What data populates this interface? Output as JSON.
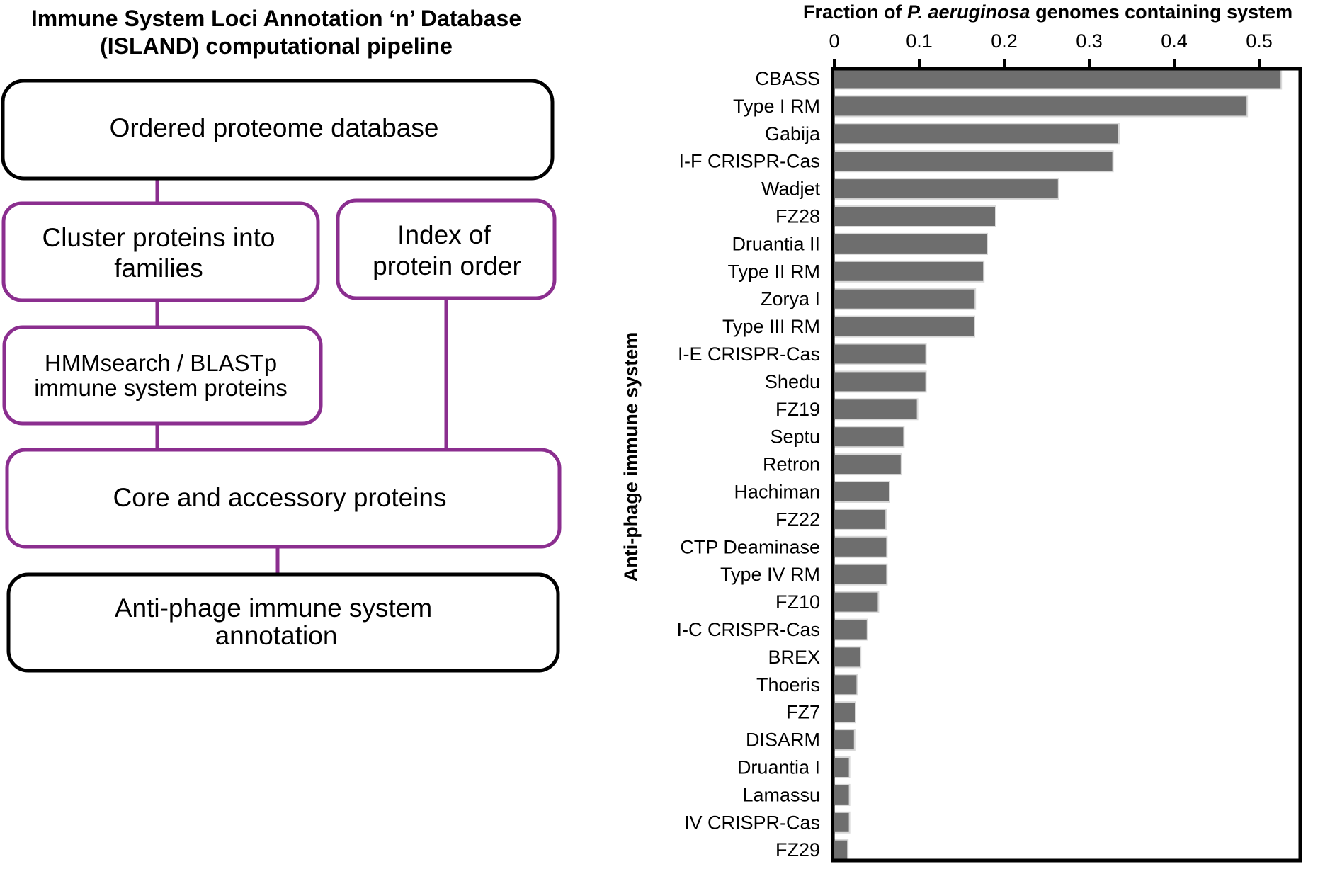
{
  "pipeline": {
    "title_line1": "Immune System Loci Annotation ‘n’ Database",
    "title_line2": "(ISLAND) computational pipeline",
    "box_ordered": "Ordered proteome database",
    "box_cluster_line1": "Cluster proteins into",
    "box_cluster_line2": "families",
    "box_index_line1": "Index of",
    "box_index_line2": "protein order",
    "box_hmm_line1": "HMMsearch / BLASTp",
    "box_hmm_line2": "immune system proteins",
    "box_core": "Core and accessory proteins",
    "box_annot_line1": "Anti-phage immune system",
    "box_annot_line2": "annotation",
    "colors": {
      "black_box": "#000000",
      "purple_box": "#8B2E8F"
    }
  },
  "chart_data": {
    "type": "bar",
    "orientation": "horizontal",
    "title_prefix": "Fraction of ",
    "title_italic": "P. aeruginosa",
    "title_suffix": " genomes containing system",
    "ylabel": "Anti-phage immune system",
    "xlim": [
      0,
      0.54
    ],
    "xticks": [
      0,
      0.1,
      0.2,
      0.3,
      0.4,
      0.5
    ],
    "xtick_labels": [
      "0",
      "0.1",
      "0.2",
      "0.3",
      "0.4",
      "0.5"
    ],
    "categories": [
      "CBASS",
      "Type I RM",
      "Gabija",
      "I-F CRISPR-Cas",
      "Wadjet",
      "FZ28",
      "Druantia II",
      "Type II RM",
      "Zorya I",
      "Type III RM",
      "I-E CRISPR-Cas",
      "Shedu",
      "FZ19",
      "Septu",
      "Retron",
      "Hachiman",
      "FZ22",
      "CTP Deaminase",
      "Type IV RM",
      "FZ10",
      "I-C CRISPR-Cas",
      "BREX",
      "Thoeris",
      "FZ7",
      "DISARM",
      "Druantia I",
      "Lamassu",
      "IV CRISPR-Cas",
      "FZ29"
    ],
    "values": [
      0.526,
      0.486,
      0.335,
      0.328,
      0.264,
      0.19,
      0.18,
      0.176,
      0.166,
      0.165,
      0.108,
      0.108,
      0.098,
      0.082,
      0.079,
      0.065,
      0.061,
      0.062,
      0.062,
      0.052,
      0.039,
      0.031,
      0.027,
      0.025,
      0.024,
      0.018,
      0.018,
      0.018,
      0.016
    ],
    "bar_color": "#6E6E6E"
  }
}
